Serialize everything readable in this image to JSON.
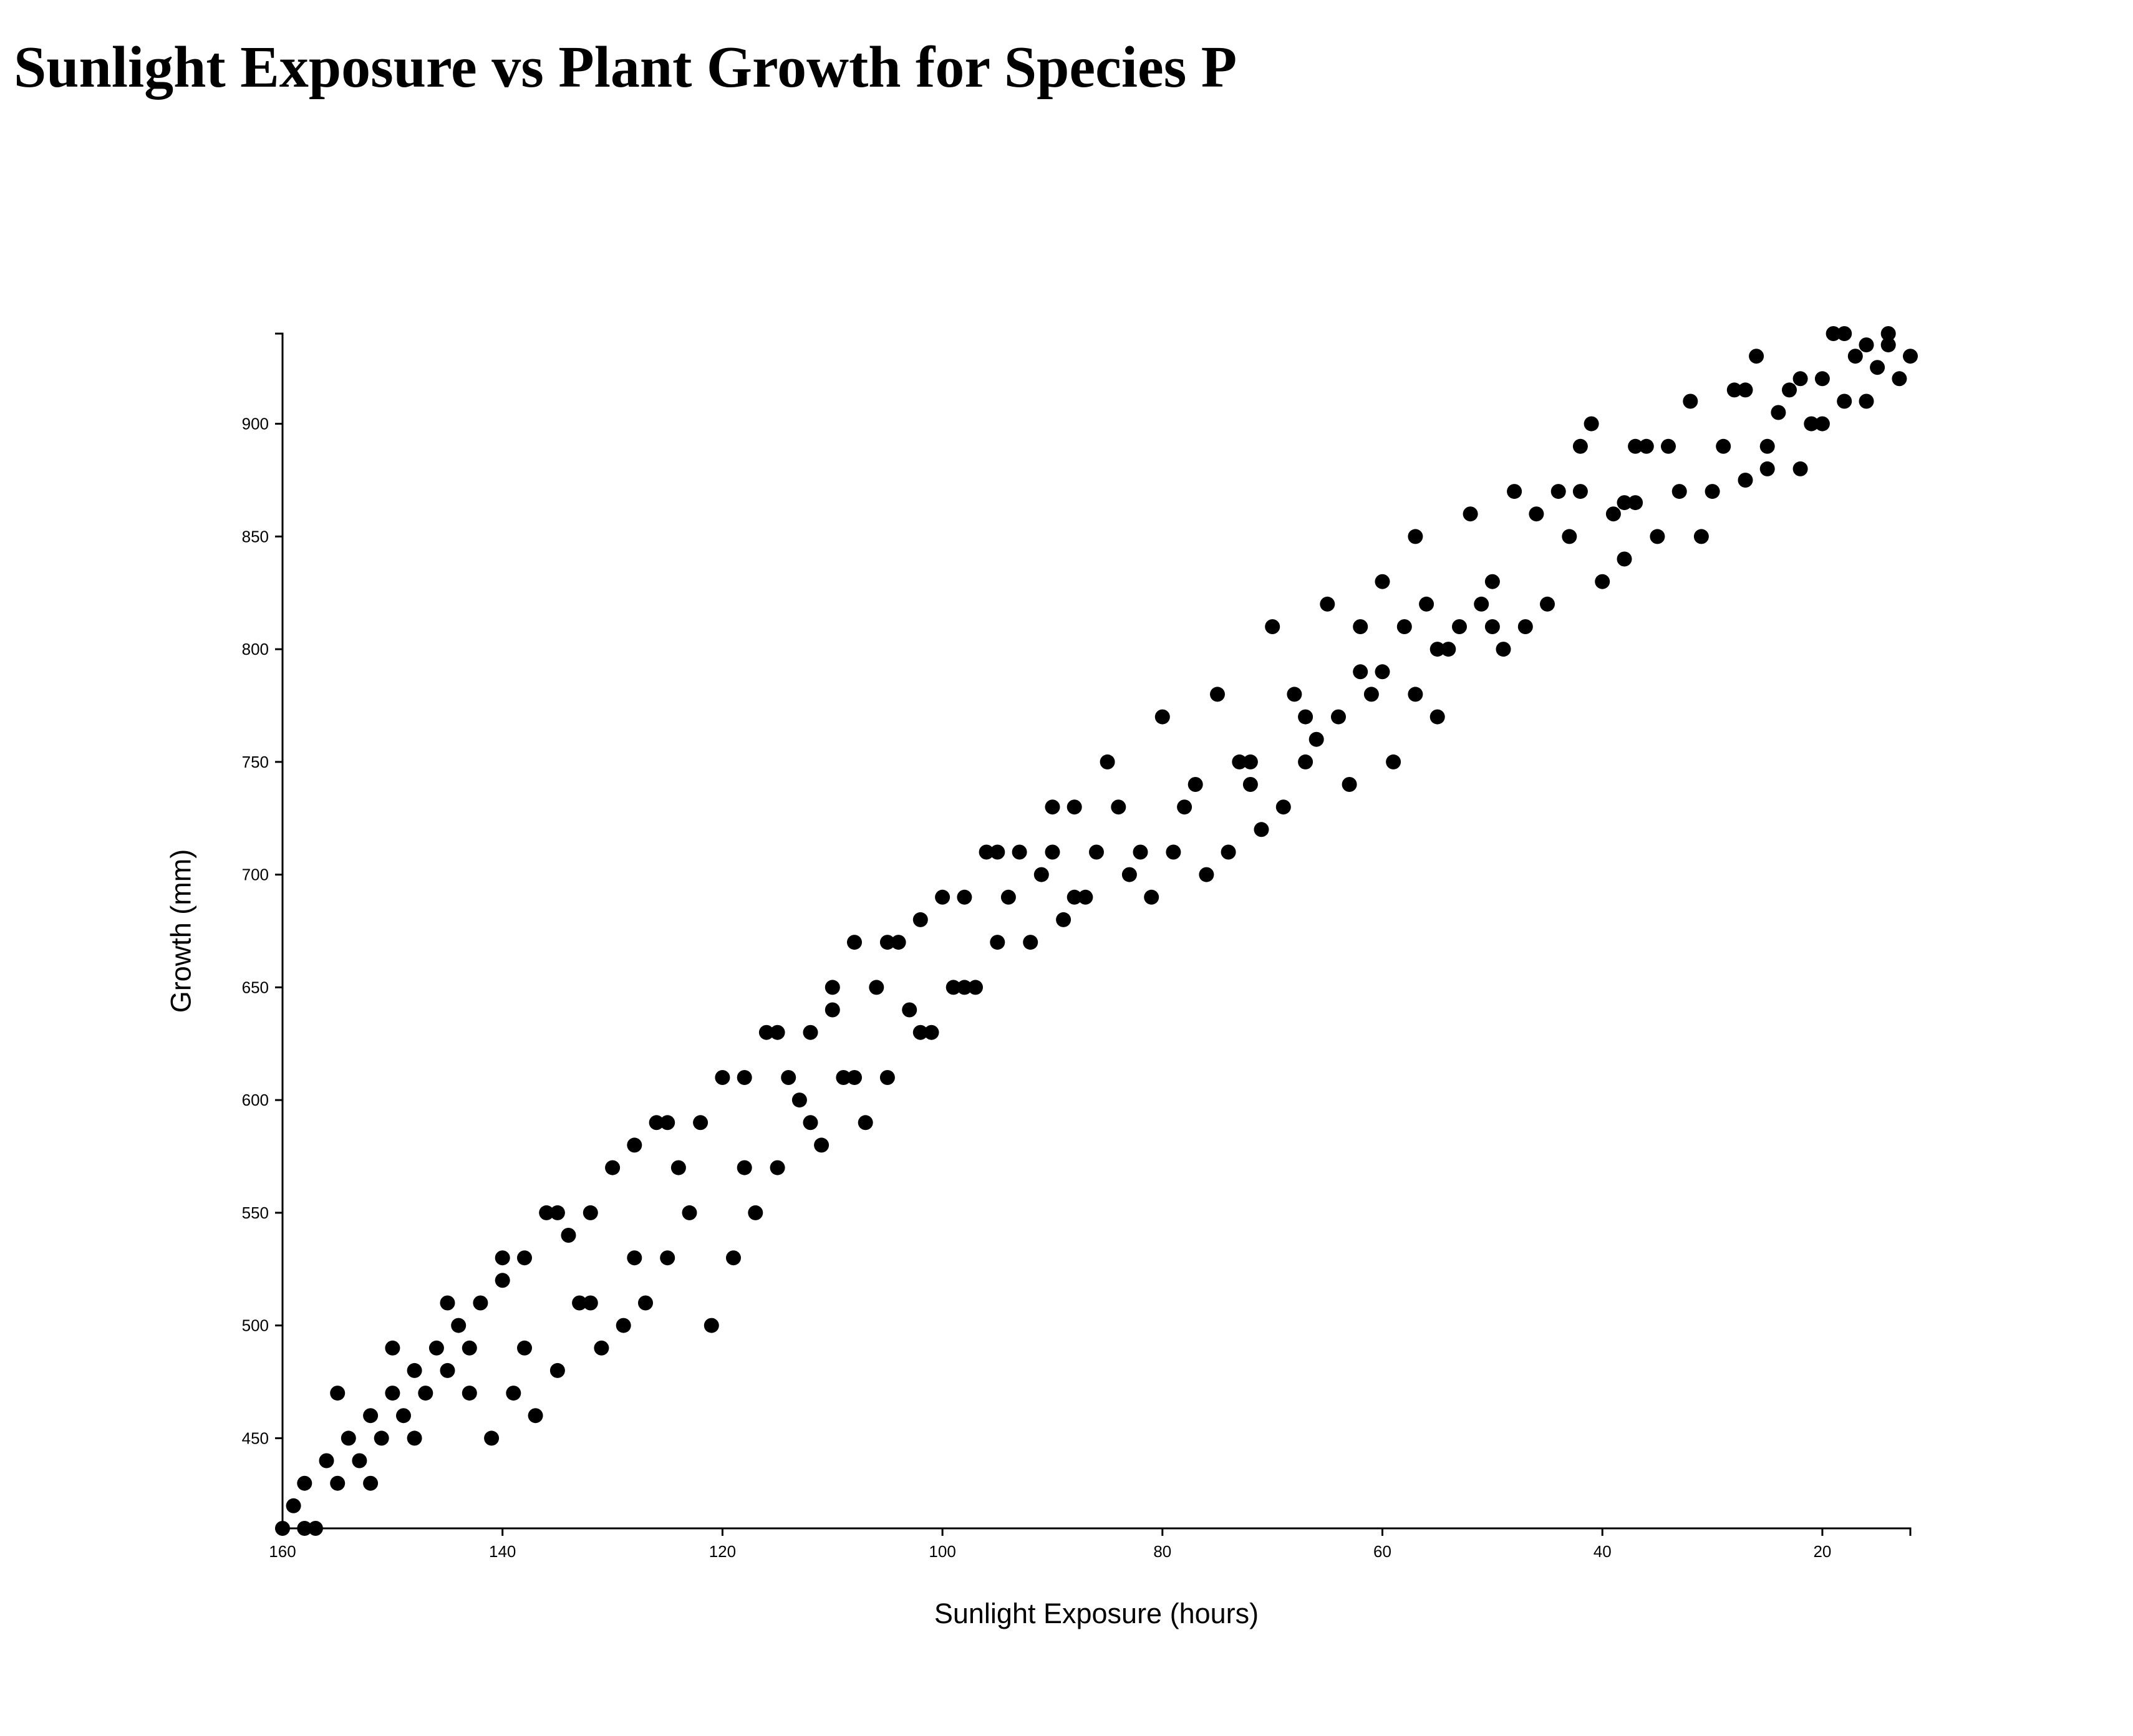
{
  "chart_data": {
    "type": "scatter",
    "title": "Sunlight Exposure vs Plant Growth for Species P",
    "xlabel": "Sunlight Exposure (hours)",
    "ylabel": "Growth (mm)",
    "xlim": [
      160,
      12
    ],
    "ylim": [
      410,
      940
    ],
    "x_reversed": true,
    "xticks": [
      160,
      140,
      120,
      100,
      80,
      60,
      40,
      20
    ],
    "yticks": [
      450,
      500,
      550,
      600,
      650,
      700,
      750,
      800,
      850,
      900
    ],
    "grid": false,
    "legend": "none",
    "marker_color": "#000000",
    "points": [
      [
        160,
        410
      ],
      [
        159,
        420
      ],
      [
        158,
        410
      ],
      [
        158,
        430
      ],
      [
        157,
        410
      ],
      [
        156,
        440
      ],
      [
        155,
        470
      ],
      [
        155,
        430
      ],
      [
        154,
        450
      ],
      [
        153,
        440
      ],
      [
        152,
        460
      ],
      [
        152,
        430
      ],
      [
        151,
        450
      ],
      [
        150,
        490
      ],
      [
        150,
        470
      ],
      [
        149,
        460
      ],
      [
        148,
        480
      ],
      [
        148,
        450
      ],
      [
        147,
        470
      ],
      [
        146,
        490
      ],
      [
        145,
        510
      ],
      [
        145,
        480
      ],
      [
        144,
        500
      ],
      [
        143,
        490
      ],
      [
        143,
        470
      ],
      [
        142,
        510
      ],
      [
        141,
        450
      ],
      [
        140,
        530
      ],
      [
        140,
        520
      ],
      [
        139,
        470
      ],
      [
        138,
        490
      ],
      [
        138,
        530
      ],
      [
        137,
        460
      ],
      [
        136,
        550
      ],
      [
        135,
        550
      ],
      [
        135,
        480
      ],
      [
        134,
        540
      ],
      [
        133,
        510
      ],
      [
        132,
        510
      ],
      [
        132,
        550
      ],
      [
        131,
        490
      ],
      [
        130,
        570
      ],
      [
        129,
        500
      ],
      [
        128,
        580
      ],
      [
        128,
        530
      ],
      [
        127,
        510
      ],
      [
        126,
        590
      ],
      [
        125,
        590
      ],
      [
        125,
        530
      ],
      [
        124,
        570
      ],
      [
        123,
        550
      ],
      [
        122,
        590
      ],
      [
        121,
        500
      ],
      [
        120,
        610
      ],
      [
        119,
        530
      ],
      [
        118,
        610
      ],
      [
        118,
        570
      ],
      [
        117,
        550
      ],
      [
        116,
        630
      ],
      [
        115,
        630
      ],
      [
        115,
        570
      ],
      [
        114,
        610
      ],
      [
        113,
        600
      ],
      [
        112,
        630
      ],
      [
        112,
        590
      ],
      [
        111,
        580
      ],
      [
        110,
        650
      ],
      [
        110,
        640
      ],
      [
        109,
        610
      ],
      [
        108,
        670
      ],
      [
        108,
        610
      ],
      [
        107,
        590
      ],
      [
        106,
        650
      ],
      [
        105,
        670
      ],
      [
        105,
        610
      ],
      [
        104,
        670
      ],
      [
        103,
        640
      ],
      [
        102,
        680
      ],
      [
        102,
        630
      ],
      [
        101,
        630
      ],
      [
        100,
        690
      ],
      [
        99,
        650
      ],
      [
        98,
        690
      ],
      [
        98,
        650
      ],
      [
        97,
        650
      ],
      [
        96,
        710
      ],
      [
        95,
        710
      ],
      [
        95,
        670
      ],
      [
        94,
        690
      ],
      [
        93,
        710
      ],
      [
        92,
        670
      ],
      [
        91,
        700
      ],
      [
        90,
        730
      ],
      [
        90,
        710
      ],
      [
        89,
        680
      ],
      [
        88,
        730
      ],
      [
        88,
        690
      ],
      [
        87,
        690
      ],
      [
        86,
        710
      ],
      [
        85,
        750
      ],
      [
        84,
        730
      ],
      [
        83,
        700
      ],
      [
        82,
        710
      ],
      [
        81,
        690
      ],
      [
        80,
        770
      ],
      [
        79,
        710
      ],
      [
        78,
        730
      ],
      [
        77,
        740
      ],
      [
        76,
        700
      ],
      [
        75,
        780
      ],
      [
        74,
        710
      ],
      [
        73,
        750
      ],
      [
        72,
        750
      ],
      [
        72,
        740
      ],
      [
        71,
        720
      ],
      [
        70,
        810
      ],
      [
        69,
        730
      ],
      [
        68,
        780
      ],
      [
        67,
        770
      ],
      [
        67,
        750
      ],
      [
        66,
        760
      ],
      [
        65,
        820
      ],
      [
        64,
        770
      ],
      [
        63,
        740
      ],
      [
        62,
        810
      ],
      [
        62,
        790
      ],
      [
        61,
        780
      ],
      [
        60,
        830
      ],
      [
        60,
        790
      ],
      [
        59,
        750
      ],
      [
        58,
        810
      ],
      [
        57,
        850
      ],
      [
        57,
        780
      ],
      [
        56,
        820
      ],
      [
        55,
        800
      ],
      [
        55,
        770
      ],
      [
        54,
        800
      ],
      [
        53,
        810
      ],
      [
        52,
        860
      ],
      [
        51,
        820
      ],
      [
        50,
        830
      ],
      [
        50,
        810
      ],
      [
        49,
        800
      ],
      [
        48,
        870
      ],
      [
        47,
        810
      ],
      [
        46,
        860
      ],
      [
        45,
        820
      ],
      [
        44,
        870
      ],
      [
        43,
        850
      ],
      [
        42,
        890
      ],
      [
        42,
        870
      ],
      [
        41,
        900
      ],
      [
        40,
        830
      ],
      [
        39,
        860
      ],
      [
        38,
        865
      ],
      [
        38,
        840
      ],
      [
        37,
        890
      ],
      [
        37,
        865
      ],
      [
        36,
        890
      ],
      [
        35,
        850
      ],
      [
        34,
        890
      ],
      [
        33,
        870
      ],
      [
        32,
        910
      ],
      [
        31,
        850
      ],
      [
        30,
        870
      ],
      [
        29,
        890
      ],
      [
        28,
        915
      ],
      [
        27,
        915
      ],
      [
        27,
        875
      ],
      [
        26,
        930
      ],
      [
        25,
        890
      ],
      [
        25,
        880
      ],
      [
        24,
        905
      ],
      [
        23,
        915
      ],
      [
        22,
        920
      ],
      [
        22,
        880
      ],
      [
        21,
        900
      ],
      [
        20,
        920
      ],
      [
        20,
        900
      ],
      [
        19,
        940
      ],
      [
        18,
        940
      ],
      [
        18,
        910
      ],
      [
        17,
        930
      ],
      [
        16,
        935
      ],
      [
        16,
        910
      ],
      [
        15,
        925
      ],
      [
        14,
        940
      ],
      [
        14,
        935
      ],
      [
        13,
        920
      ],
      [
        12,
        930
      ]
    ]
  }
}
